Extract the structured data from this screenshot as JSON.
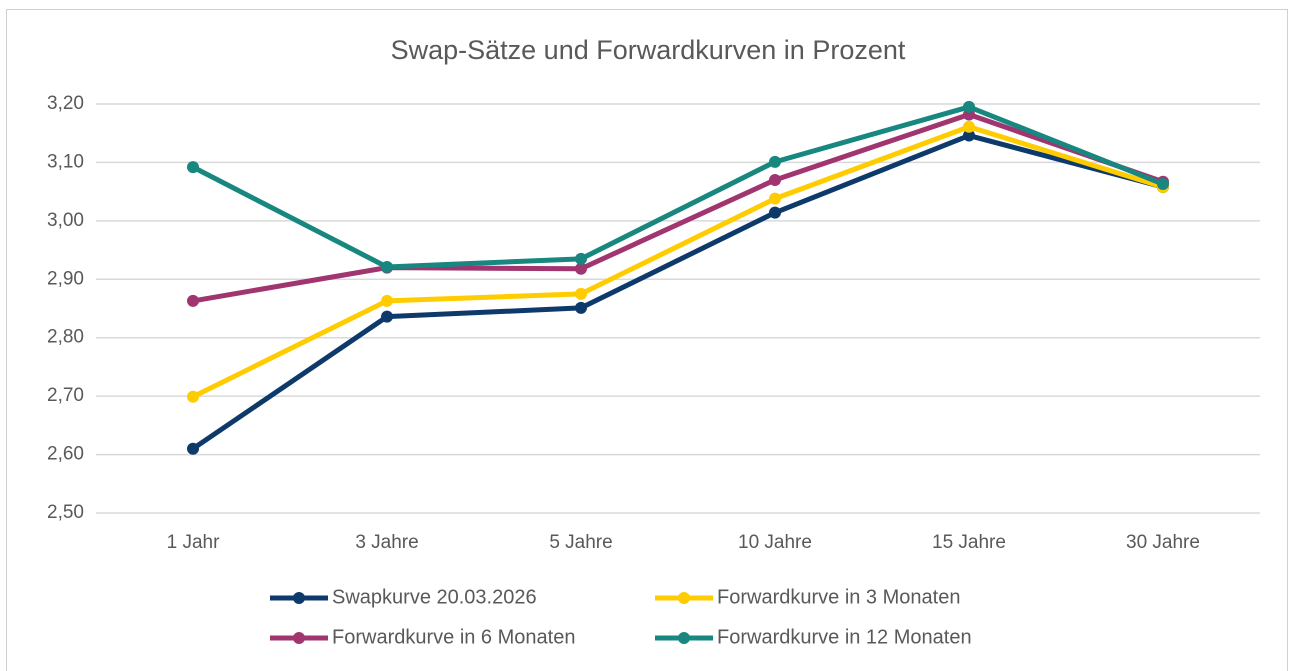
{
  "chart_data": {
    "type": "line",
    "title": "Swap-Sätze und Forwardkurven in Prozent",
    "categories": [
      "1 Jahr",
      "3 Jahre",
      "5 Jahre",
      "10 Jahre",
      "15 Jahre",
      "30 Jahre"
    ],
    "series": [
      {
        "name": "Swapkurve 20.03.2026",
        "color": "#0e3a6b",
        "values": [
          2.61,
          2.836,
          2.851,
          3.014,
          3.146,
          3.058
        ]
      },
      {
        "name": "Forwardkurve in 3 Monaten",
        "color": "#ffcc00",
        "values": [
          2.699,
          2.863,
          2.875,
          3.038,
          3.161,
          3.058
        ]
      },
      {
        "name": "Forwardkurve in 6 Monaten",
        "color": "#a0356f",
        "values": [
          2.863,
          2.92,
          2.918,
          3.07,
          3.182,
          3.067
        ]
      },
      {
        "name": "Forwardkurve in 12 Monaten",
        "color": "#17877f",
        "values": [
          3.092,
          2.921,
          2.935,
          3.101,
          3.195,
          3.063
        ]
      }
    ],
    "ylim": [
      2.5,
      3.2
    ],
    "yticks": [
      {
        "value": 2.5,
        "label": "2,50"
      },
      {
        "value": 2.6,
        "label": "2,60"
      },
      {
        "value": 2.7,
        "label": "2,70"
      },
      {
        "value": 2.8,
        "label": "2,80"
      },
      {
        "value": 2.9,
        "label": "2,90"
      },
      {
        "value": 3.0,
        "label": "3,00"
      },
      {
        "value": 3.1,
        "label": "3,10"
      },
      {
        "value": 3.2,
        "label": "3,20"
      }
    ],
    "grid": true,
    "legend": "bottom"
  }
}
